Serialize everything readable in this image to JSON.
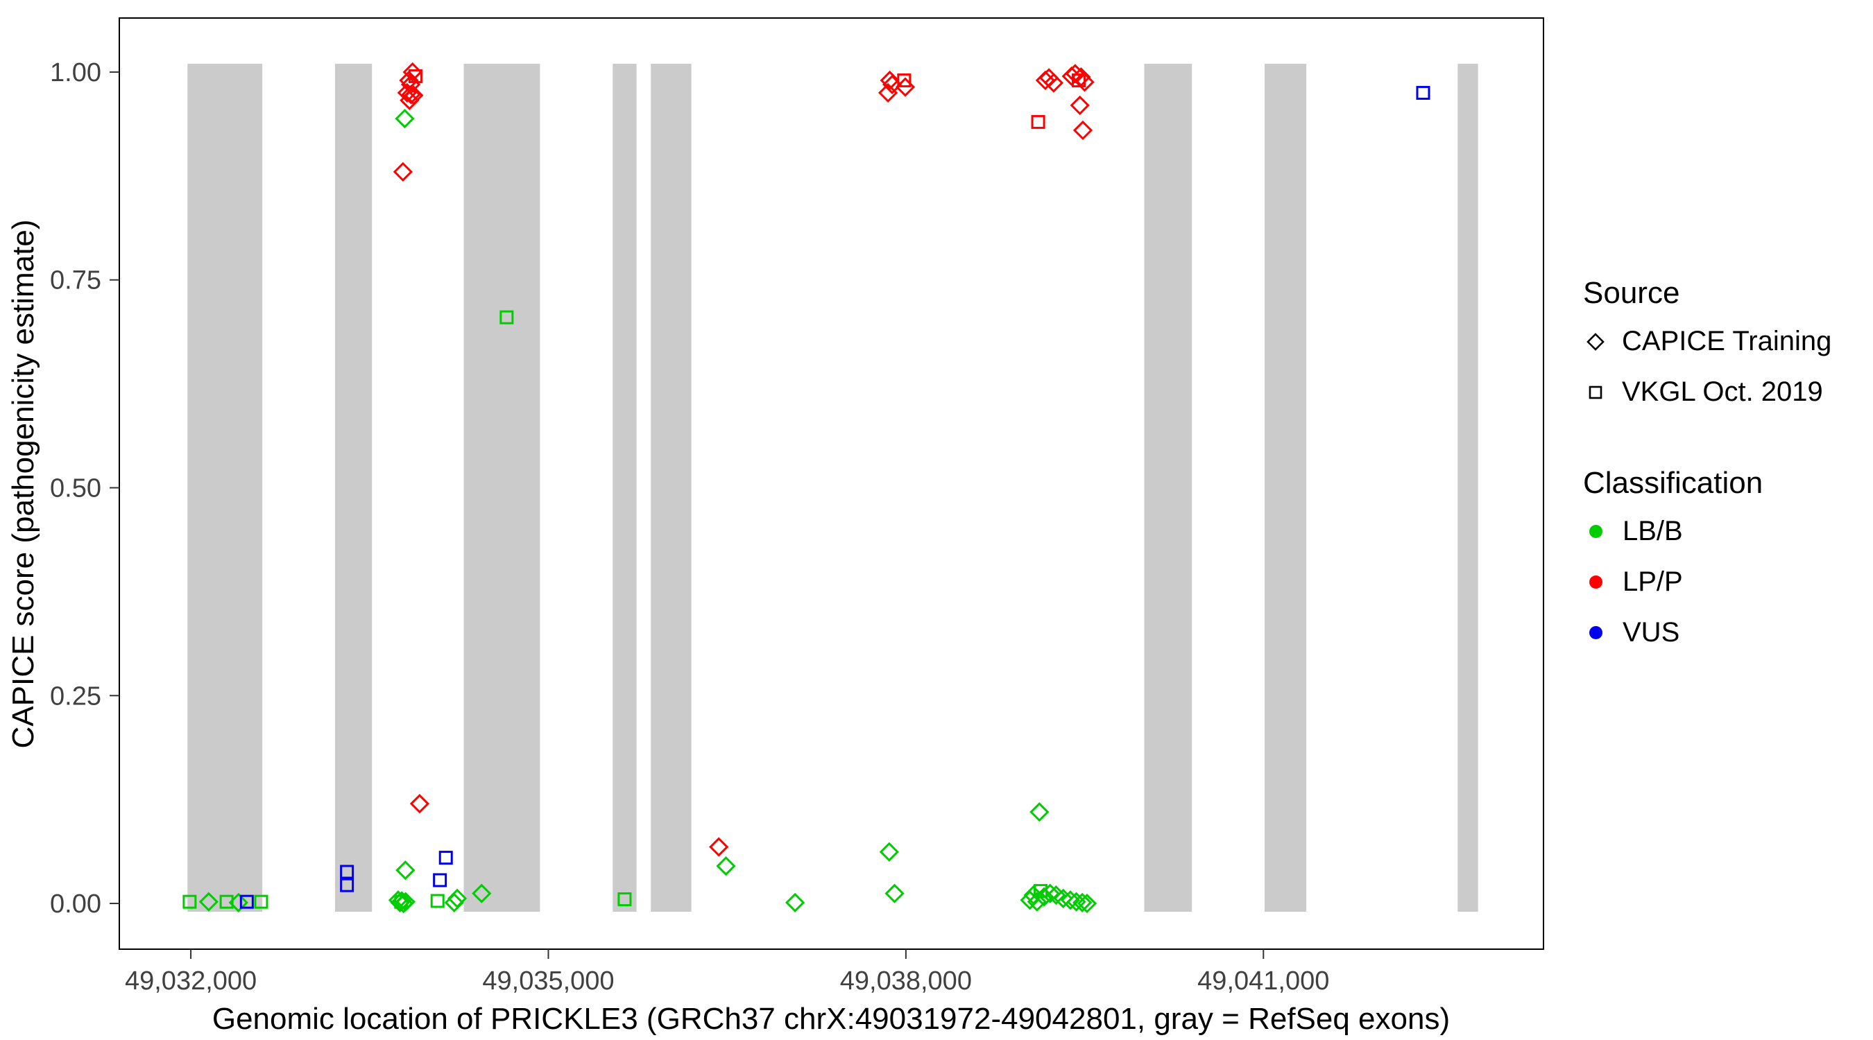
{
  "chart_data": {
    "type": "scatter",
    "xlabel": "Genomic location of PRICKLE3 (GRCh37 chrX:49031972-49042801, gray = RefSeq exons)",
    "ylabel": "CAPICE score (pathogenicity estimate)",
    "x_domain": [
      49031400,
      49043350
    ],
    "y_domain": [
      -0.055,
      1.065
    ],
    "x_ticks": [
      {
        "value": 49032000,
        "label": "49,032,000"
      },
      {
        "value": 49035000,
        "label": "49,035,000"
      },
      {
        "value": 49038000,
        "label": "49,038,000"
      },
      {
        "value": 49041000,
        "label": "49,041,000"
      }
    ],
    "y_ticks": [
      {
        "value": 0.0,
        "label": "0.00"
      },
      {
        "value": 0.25,
        "label": "0.25"
      },
      {
        "value": 0.5,
        "label": "0.50"
      },
      {
        "value": 0.75,
        "label": "0.75"
      },
      {
        "value": 1.0,
        "label": "1.00"
      }
    ],
    "colors": {
      "LB/B": "#00CD00",
      "LP/P": "#FF0000",
      "VUS": "#0000EE",
      "exon": "#CBCBCB"
    },
    "shape_by_source": {
      "CAPICE Training": "diamond",
      "VKGL Oct. 2019": "square"
    },
    "legend": {
      "source": {
        "title": "Source",
        "items": [
          {
            "label": "CAPICE Training",
            "shape": "diamond"
          },
          {
            "label": "VKGL Oct. 2019",
            "shape": "square"
          }
        ]
      },
      "classification": {
        "title": "Classification",
        "items": [
          {
            "label": "LB/B",
            "color": "#00CD00"
          },
          {
            "label": "LP/P",
            "color": "#FF0000"
          },
          {
            "label": "VUS",
            "color": "#0000EE"
          }
        ]
      }
    },
    "exons": [
      [
        49031972,
        49032600
      ],
      [
        49033210,
        49033520
      ],
      [
        49034290,
        49034930
      ],
      [
        49035540,
        49035740
      ],
      [
        49035860,
        49036200
      ],
      [
        49040000,
        49040400
      ],
      [
        49041010,
        49041360
      ],
      [
        49042630,
        49042801
      ]
    ],
    "points": [
      {
        "x": 49031990,
        "y": 0.002,
        "source": "VKGL Oct. 2019",
        "cls": "LB/B"
      },
      {
        "x": 49032150,
        "y": 0.002,
        "source": "CAPICE Training",
        "cls": "LB/B"
      },
      {
        "x": 49032300,
        "y": 0.002,
        "source": "VKGL Oct. 2019",
        "cls": "LB/B"
      },
      {
        "x": 49032400,
        "y": 0.001,
        "source": "CAPICE Training",
        "cls": "LB/B"
      },
      {
        "x": 49032470,
        "y": 0.002,
        "source": "VKGL Oct. 2019",
        "cls": "VUS"
      },
      {
        "x": 49032590,
        "y": 0.002,
        "source": "VKGL Oct. 2019",
        "cls": "LB/B"
      },
      {
        "x": 49033310,
        "y": 0.038,
        "source": "VKGL Oct. 2019",
        "cls": "VUS"
      },
      {
        "x": 49033310,
        "y": 0.022,
        "source": "VKGL Oct. 2019",
        "cls": "VUS"
      },
      {
        "x": 49033860,
        "y": 1.0,
        "source": "CAPICE Training",
        "cls": "LP/P"
      },
      {
        "x": 49033885,
        "y": 0.995,
        "source": "VKGL Oct. 2019",
        "cls": "LP/P"
      },
      {
        "x": 49033830,
        "y": 0.99,
        "source": "CAPICE Training",
        "cls": "LP/P"
      },
      {
        "x": 49033845,
        "y": 0.985,
        "source": "CAPICE Training",
        "cls": "LP/P"
      },
      {
        "x": 49033815,
        "y": 0.975,
        "source": "CAPICE Training",
        "cls": "LP/P"
      },
      {
        "x": 49033848,
        "y": 0.973,
        "source": "CAPICE Training",
        "cls": "LP/P"
      },
      {
        "x": 49033870,
        "y": 0.972,
        "source": "CAPICE Training",
        "cls": "LP/P"
      },
      {
        "x": 49033835,
        "y": 0.966,
        "source": "CAPICE Training",
        "cls": "LP/P"
      },
      {
        "x": 49033795,
        "y": 0.944,
        "source": "CAPICE Training",
        "cls": "LB/B"
      },
      {
        "x": 49033780,
        "y": 0.88,
        "source": "CAPICE Training",
        "cls": "LP/P"
      },
      {
        "x": 49033920,
        "y": 0.12,
        "source": "CAPICE Training",
        "cls": "LP/P"
      },
      {
        "x": 49033800,
        "y": 0.04,
        "source": "CAPICE Training",
        "cls": "LB/B"
      },
      {
        "x": 49033740,
        "y": 0.004,
        "source": "CAPICE Training",
        "cls": "LB/B"
      },
      {
        "x": 49033755,
        "y": 0.001,
        "source": "CAPICE Training",
        "cls": "LB/B"
      },
      {
        "x": 49033770,
        "y": 0.003,
        "source": "CAPICE Training",
        "cls": "LB/B"
      },
      {
        "x": 49033785,
        "y": 0.0,
        "source": "CAPICE Training",
        "cls": "LB/B"
      },
      {
        "x": 49033802,
        "y": 0.002,
        "source": "CAPICE Training",
        "cls": "LB/B"
      },
      {
        "x": 49033765,
        "y": 0.002,
        "source": "VKGL Oct. 2019",
        "cls": "LB/B"
      },
      {
        "x": 49034070,
        "y": 0.003,
        "source": "VKGL Oct. 2019",
        "cls": "LB/B"
      },
      {
        "x": 49034090,
        "y": 0.028,
        "source": "VKGL Oct. 2019",
        "cls": "VUS"
      },
      {
        "x": 49034140,
        "y": 0.055,
        "source": "VKGL Oct. 2019",
        "cls": "VUS"
      },
      {
        "x": 49034210,
        "y": 0.001,
        "source": "CAPICE Training",
        "cls": "LB/B"
      },
      {
        "x": 49034235,
        "y": 0.006,
        "source": "CAPICE Training",
        "cls": "LB/B"
      },
      {
        "x": 49034440,
        "y": 0.012,
        "source": "CAPICE Training",
        "cls": "LB/B"
      },
      {
        "x": 49034650,
        "y": 0.705,
        "source": "VKGL Oct. 2019",
        "cls": "LB/B"
      },
      {
        "x": 49035640,
        "y": 0.005,
        "source": "VKGL Oct. 2019",
        "cls": "LB/B"
      },
      {
        "x": 49036430,
        "y": 0.068,
        "source": "CAPICE Training",
        "cls": "LP/P"
      },
      {
        "x": 49036490,
        "y": 0.045,
        "source": "CAPICE Training",
        "cls": "LB/B"
      },
      {
        "x": 49037070,
        "y": 0.001,
        "source": "CAPICE Training",
        "cls": "LB/B"
      },
      {
        "x": 49037850,
        "y": 0.975,
        "source": "CAPICE Training",
        "cls": "LP/P"
      },
      {
        "x": 49037865,
        "y": 0.99,
        "source": "CAPICE Training",
        "cls": "LP/P"
      },
      {
        "x": 49037885,
        "y": 0.985,
        "source": "CAPICE Training",
        "cls": "LP/P"
      },
      {
        "x": 49037985,
        "y": 0.99,
        "source": "VKGL Oct. 2019",
        "cls": "LP/P"
      },
      {
        "x": 49037995,
        "y": 0.982,
        "source": "CAPICE Training",
        "cls": "LP/P"
      },
      {
        "x": 49037860,
        "y": 0.062,
        "source": "CAPICE Training",
        "cls": "LB/B"
      },
      {
        "x": 49037905,
        "y": 0.012,
        "source": "CAPICE Training",
        "cls": "LB/B"
      },
      {
        "x": 49039110,
        "y": 0.94,
        "source": "VKGL Oct. 2019",
        "cls": "LP/P"
      },
      {
        "x": 49039170,
        "y": 0.99,
        "source": "CAPICE Training",
        "cls": "LP/P"
      },
      {
        "x": 49039200,
        "y": 0.993,
        "source": "CAPICE Training",
        "cls": "LP/P"
      },
      {
        "x": 49039240,
        "y": 0.987,
        "source": "CAPICE Training",
        "cls": "LP/P"
      },
      {
        "x": 49039390,
        "y": 0.995,
        "source": "CAPICE Training",
        "cls": "LP/P"
      },
      {
        "x": 49039420,
        "y": 0.998,
        "source": "CAPICE Training",
        "cls": "LP/P"
      },
      {
        "x": 49039450,
        "y": 0.99,
        "source": "VKGL Oct. 2019",
        "cls": "LP/P"
      },
      {
        "x": 49039470,
        "y": 0.994,
        "source": "CAPICE Training",
        "cls": "LP/P"
      },
      {
        "x": 49039500,
        "y": 0.988,
        "source": "CAPICE Training",
        "cls": "LP/P"
      },
      {
        "x": 49039460,
        "y": 0.96,
        "source": "CAPICE Training",
        "cls": "LP/P"
      },
      {
        "x": 49039485,
        "y": 0.93,
        "source": "CAPICE Training",
        "cls": "LP/P"
      },
      {
        "x": 49039120,
        "y": 0.11,
        "source": "CAPICE Training",
        "cls": "LB/B"
      },
      {
        "x": 49039040,
        "y": 0.004,
        "source": "CAPICE Training",
        "cls": "LB/B"
      },
      {
        "x": 49039070,
        "y": 0.01,
        "source": "CAPICE Training",
        "cls": "LB/B"
      },
      {
        "x": 49039100,
        "y": 0.002,
        "source": "CAPICE Training",
        "cls": "LB/B"
      },
      {
        "x": 49039130,
        "y": 0.015,
        "source": "VKGL Oct. 2019",
        "cls": "LB/B"
      },
      {
        "x": 49039160,
        "y": 0.008,
        "source": "CAPICE Training",
        "cls": "LB/B"
      },
      {
        "x": 49039210,
        "y": 0.012,
        "source": "CAPICE Training",
        "cls": "LB/B"
      },
      {
        "x": 49039260,
        "y": 0.01,
        "source": "CAPICE Training",
        "cls": "LB/B"
      },
      {
        "x": 49039320,
        "y": 0.006,
        "source": "CAPICE Training",
        "cls": "LB/B"
      },
      {
        "x": 49039380,
        "y": 0.004,
        "source": "CAPICE Training",
        "cls": "LB/B"
      },
      {
        "x": 49039430,
        "y": 0.002,
        "source": "CAPICE Training",
        "cls": "LB/B"
      },
      {
        "x": 49039480,
        "y": 0.001,
        "source": "CAPICE Training",
        "cls": "LB/B"
      },
      {
        "x": 49039520,
        "y": 0.0,
        "source": "CAPICE Training",
        "cls": "LB/B"
      },
      {
        "x": 49042340,
        "y": 0.975,
        "source": "VKGL Oct. 2019",
        "cls": "VUS"
      }
    ]
  }
}
